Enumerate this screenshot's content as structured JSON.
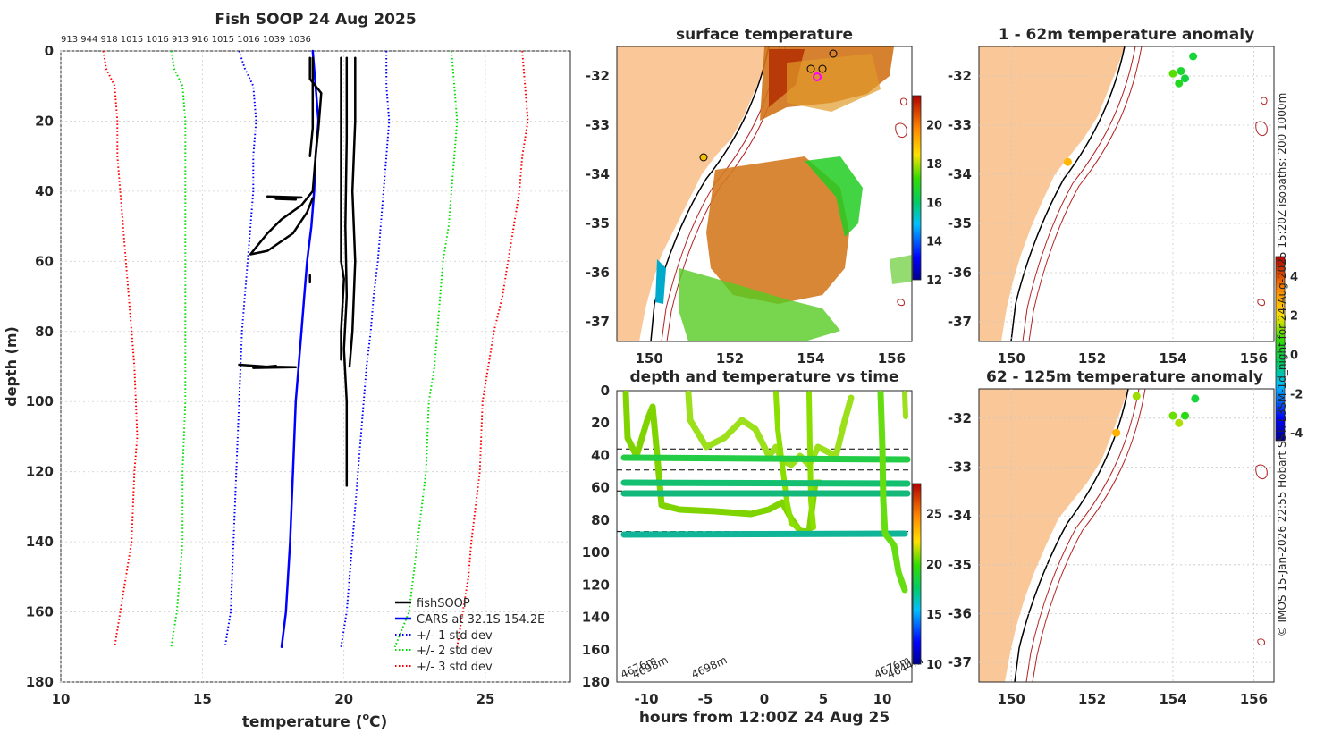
{
  "chart_data": [
    {
      "id": "profile",
      "type": "line",
      "title": "Fish SOOP 24 Aug 2025",
      "xlabel_main": "temperature (",
      "xlabel_sup": "o",
      "xlabel_tail": "C)",
      "ylabel": "depth (m)",
      "xlim": [
        10,
        28
      ],
      "ylim": [
        0,
        180
      ],
      "xticks": [
        10,
        15,
        20,
        25
      ],
      "yticks": [
        0,
        20,
        40,
        60,
        80,
        100,
        120,
        140,
        160,
        180
      ],
      "top_labels": "913 944 918 1015 1016 913 916 1015 1016 1039 1036",
      "legend": [
        {
          "label": "fishSOOP",
          "color": "#000000",
          "style": "solid"
        },
        {
          "label": "CARS at 32.1S 154.2E",
          "color": "#0000ff",
          "style": "solid"
        },
        {
          "label": "+/- 1 std dev",
          "color": "#0000ff",
          "style": "dotted"
        },
        {
          "label": "+/- 2 std dev",
          "color": "#00dd00",
          "style": "dotted"
        },
        {
          "label": "+/- 3 std dev",
          "color": "#ff0000",
          "style": "dotted"
        }
      ],
      "series": [
        {
          "name": "CARS mean",
          "color": "#0000ff",
          "dash": "none",
          "width": 2.5,
          "points": [
            [
              18.9,
              0
            ],
            [
              19.0,
              10
            ],
            [
              19.1,
              20
            ],
            [
              19.0,
              30
            ],
            [
              18.95,
              40
            ],
            [
              18.85,
              50
            ],
            [
              18.7,
              60
            ],
            [
              18.6,
              70
            ],
            [
              18.5,
              80
            ],
            [
              18.4,
              90
            ],
            [
              18.3,
              100
            ],
            [
              18.2,
              120
            ],
            [
              18.1,
              140
            ],
            [
              17.95,
              160
            ],
            [
              17.8,
              170
            ]
          ]
        },
        {
          "name": "+1 std",
          "color": "#0000ff",
          "dash": "1.5 2.5",
          "width": 2,
          "points": [
            [
              21.5,
              0
            ],
            [
              21.5,
              10
            ],
            [
              21.6,
              20
            ],
            [
              21.5,
              30
            ],
            [
              21.4,
              40
            ],
            [
              21.3,
              50
            ],
            [
              21.2,
              60
            ],
            [
              21.05,
              70
            ],
            [
              20.95,
              80
            ],
            [
              20.8,
              90
            ],
            [
              20.7,
              100
            ],
            [
              20.5,
              120
            ],
            [
              20.3,
              140
            ],
            [
              20.1,
              160
            ],
            [
              19.9,
              170
            ]
          ]
        },
        {
          "name": "-1 std",
          "color": "#0000ff",
          "dash": "1.5 2.5",
          "width": 2,
          "points": [
            [
              16.3,
              0
            ],
            [
              16.5,
              5
            ],
            [
              16.8,
              10
            ],
            [
              16.9,
              20
            ],
            [
              16.8,
              30
            ],
            [
              16.8,
              40
            ],
            [
              16.7,
              50
            ],
            [
              16.6,
              60
            ],
            [
              16.5,
              70
            ],
            [
              16.4,
              80
            ],
            [
              16.3,
              100
            ],
            [
              16.2,
              120
            ],
            [
              16.1,
              140
            ],
            [
              16.0,
              160
            ],
            [
              15.8,
              170
            ]
          ]
        },
        {
          "name": "+2 std",
          "color": "#00dd00",
          "dash": "1.5 2.5",
          "width": 2,
          "points": [
            [
              23.8,
              0
            ],
            [
              23.9,
              10
            ],
            [
              24.0,
              20
            ],
            [
              23.9,
              30
            ],
            [
              23.8,
              40
            ],
            [
              23.7,
              50
            ],
            [
              23.5,
              60
            ],
            [
              23.4,
              70
            ],
            [
              23.3,
              80
            ],
            [
              23.2,
              90
            ],
            [
              23.0,
              100
            ],
            [
              22.9,
              120
            ],
            [
              22.6,
              140
            ],
            [
              22.3,
              160
            ],
            [
              21.8,
              170
            ]
          ]
        },
        {
          "name": "-2 std",
          "color": "#00dd00",
          "dash": "1.5 2.5",
          "width": 2,
          "points": [
            [
              13.9,
              0
            ],
            [
              14.0,
              5
            ],
            [
              14.3,
              10
            ],
            [
              14.4,
              20
            ],
            [
              14.4,
              30
            ],
            [
              14.4,
              40
            ],
            [
              14.4,
              60
            ],
            [
              14.4,
              80
            ],
            [
              14.4,
              100
            ],
            [
              14.3,
              120
            ],
            [
              14.3,
              140
            ],
            [
              14.1,
              160
            ],
            [
              13.9,
              170
            ]
          ]
        },
        {
          "name": "+3 std",
          "color": "#ff0000",
          "dash": "1.5 2.5",
          "width": 2,
          "points": [
            [
              26.3,
              0
            ],
            [
              26.4,
              10
            ],
            [
              26.5,
              20
            ],
            [
              26.3,
              30
            ],
            [
              26.2,
              40
            ],
            [
              26.0,
              50
            ],
            [
              25.8,
              60
            ],
            [
              25.6,
              70
            ],
            [
              25.3,
              80
            ],
            [
              25.1,
              90
            ],
            [
              24.9,
              100
            ],
            [
              24.8,
              120
            ],
            [
              24.5,
              140
            ],
            [
              24.4,
              150
            ],
            [
              24.0,
              170
            ]
          ]
        },
        {
          "name": "-3 std",
          "color": "#ff0000",
          "dash": "1.5 2.5",
          "width": 2,
          "points": [
            [
              11.5,
              0
            ],
            [
              11.6,
              5
            ],
            [
              11.9,
              10
            ],
            [
              12.0,
              20
            ],
            [
              12.0,
              30
            ],
            [
              12.1,
              40
            ],
            [
              12.2,
              50
            ],
            [
              12.3,
              60
            ],
            [
              12.4,
              70
            ],
            [
              12.5,
              80
            ],
            [
              12.6,
              90
            ],
            [
              12.7,
              110
            ],
            [
              12.6,
              120
            ],
            [
              12.5,
              140
            ],
            [
              12.4,
              145
            ],
            [
              12.2,
              155
            ],
            [
              11.9,
              170
            ]
          ]
        },
        {
          "name": "fishSOOP A",
          "color": "#000000",
          "dash": "none",
          "width": 2.5,
          "points": [
            [
              18.8,
              2
            ],
            [
              18.8,
              8
            ],
            [
              19.2,
              12
            ],
            [
              19.1,
              22
            ],
            [
              19.0,
              30
            ],
            [
              18.9,
              40
            ],
            [
              18.5,
              44
            ],
            [
              17.8,
              48
            ],
            [
              17.3,
              52
            ],
            [
              16.9,
              56
            ],
            [
              16.7,
              58
            ],
            [
              17.3,
              57
            ],
            [
              18.2,
              52
            ],
            [
              18.7,
              46
            ],
            [
              18.9,
              42
            ]
          ]
        },
        {
          "name": "fishSOOP B",
          "color": "#000000",
          "dash": "none",
          "width": 2.5,
          "points": [
            [
              18.9,
              2
            ],
            [
              18.9,
              12
            ],
            [
              18.9,
              22
            ],
            [
              18.8,
              30
            ]
          ]
        },
        {
          "name": "fishSOOP C",
          "color": "#000000",
          "dash": "none",
          "width": 2.5,
          "points": [
            [
              19.9,
              2
            ],
            [
              19.9,
              20
            ],
            [
              19.9,
              40
            ],
            [
              19.9,
              60
            ],
            [
              20.0,
              65
            ],
            [
              19.9,
              80
            ],
            [
              19.9,
              88
            ]
          ]
        },
        {
          "name": "fishSOOP D",
          "color": "#000000",
          "dash": "none",
          "width": 2.5,
          "points": [
            [
              20.1,
              2
            ],
            [
              20.1,
              25
            ],
            [
              20.05,
              50
            ],
            [
              20.1,
              70
            ],
            [
              20.0,
              85
            ],
            [
              20.1,
              100
            ],
            [
              20.1,
              124
            ]
          ]
        },
        {
          "name": "fishSOOP E",
          "color": "#000000",
          "dash": "none",
          "width": 2.5,
          "points": [
            [
              20.4,
              2
            ],
            [
              20.4,
              20
            ],
            [
              20.3,
              40
            ],
            [
              20.4,
              60
            ],
            [
              20.3,
              80
            ],
            [
              20.2,
              90
            ]
          ]
        },
        {
          "name": "fishSOOP F",
          "color": "#000000",
          "dash": "none",
          "width": 2.5,
          "points": [
            [
              17.3,
              41.5
            ],
            [
              18.5,
              41.8
            ],
            [
              17.6,
              42.2
            ],
            [
              18.3,
              42.4
            ],
            [
              17.5,
              41.8
            ]
          ]
        },
        {
          "name": "fishSOOP G",
          "color": "#000000",
          "dash": "none",
          "width": 2.5,
          "points": [
            [
              16.3,
              89.5
            ],
            [
              17.2,
              90
            ],
            [
              18.3,
              90.2
            ],
            [
              16.8,
              90.4
            ],
            [
              17.6,
              89.8
            ]
          ]
        },
        {
          "name": "fishSOOP H",
          "color": "#000000",
          "dash": "none",
          "width": 2.5,
          "points": [
            [
              18.8,
              64
            ],
            [
              18.8,
              66
            ]
          ]
        }
      ]
    },
    {
      "id": "sst",
      "type": "heatmap",
      "title": "surface temperature",
      "xticks": [
        150,
        152,
        154,
        156
      ],
      "yticks": [
        -32,
        -33,
        -34,
        -35,
        -36,
        -37
      ],
      "xlim": [
        149.2,
        156.5
      ],
      "ylim": [
        -37.4,
        -31.4
      ],
      "colorbar_ticks": [
        12,
        14,
        16,
        18,
        20
      ],
      "colorbar_range": [
        12,
        21.5
      ]
    },
    {
      "id": "time",
      "type": "line",
      "title": "depth and temperature vs time",
      "xlabel": "hours from 12:00Z 24 Aug 25",
      "xticks": [
        -10,
        -5,
        0,
        5,
        10
      ],
      "yticks": [
        0,
        20,
        40,
        60,
        80,
        100,
        120,
        140,
        160,
        180
      ],
      "xlim": [
        -12.5,
        12.5
      ],
      "ylim": [
        0,
        180
      ],
      "colorbar_ticks": [
        10,
        15,
        20,
        25
      ],
      "colorbar_range": [
        10,
        28
      ],
      "dashed_depths": [
        36,
        49,
        62,
        87
      ],
      "bottom_labels": [
        {
          "text": "4676m",
          "x": -12
        },
        {
          "text": "4698m",
          "x": -11
        },
        {
          "text": "4698m",
          "x": -6
        },
        {
          "text": "4676m",
          "x": 9.5
        },
        {
          "text": "4644m",
          "x": 10.6
        }
      ]
    },
    {
      "id": "anom1",
      "type": "scatter",
      "title": "1 - 62m temperature anomaly",
      "xticks": [
        150,
        152,
        154,
        156
      ],
      "yticks": [
        -32,
        -33,
        -34,
        -35,
        -36,
        -37
      ],
      "points": [
        [
          154.0,
          -31.95,
          1.0
        ],
        [
          154.2,
          -31.9,
          0.2
        ],
        [
          154.3,
          -32.05,
          0.0
        ],
        [
          154.15,
          -32.15,
          0.4
        ],
        [
          154.5,
          -31.6,
          0.1
        ],
        [
          151.4,
          -33.75,
          2.6
        ]
      ]
    },
    {
      "id": "anom2",
      "type": "scatter",
      "title": "62 - 125m temperature anomaly",
      "xticks": [
        150,
        152,
        154,
        156
      ],
      "yticks": [
        -32,
        -33,
        -34,
        -35,
        -36,
        -37
      ],
      "points": [
        [
          153.1,
          -31.55,
          1.4
        ],
        [
          154.0,
          -31.95,
          1.1
        ],
        [
          154.15,
          -32.1,
          1.5
        ],
        [
          154.3,
          -31.95,
          0.5
        ],
        [
          154.55,
          -31.6,
          0.1
        ],
        [
          152.6,
          -32.3,
          2.7
        ]
      ],
      "colorbar_ticks": [
        -4,
        -2,
        0,
        2,
        4
      ],
      "colorbar_range": [
        -4.4,
        5
      ]
    }
  ],
  "side_caption": "© IMOS 15-Jan-2026 22:55 Hobart SST: L3SM-1d_night for 24-Aug-2025 15:20Z isobaths: 200  1000m"
}
